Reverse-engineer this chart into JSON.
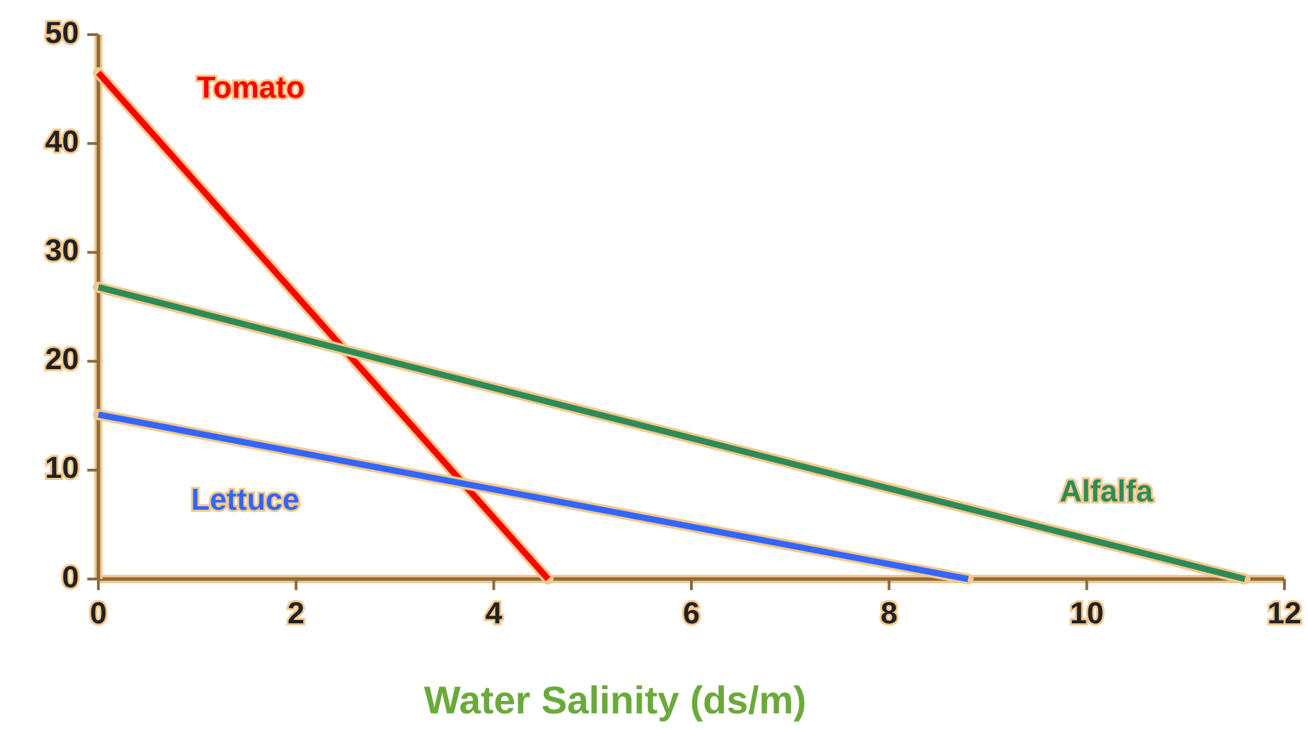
{
  "chart_data": {
    "type": "line",
    "xlabel": "Water Salinity (ds/m)",
    "xlim": [
      0,
      12
    ],
    "xticks": [
      0,
      2,
      4,
      6,
      8,
      10,
      12
    ],
    "ylim": [
      0,
      50
    ],
    "yticks": [
      0,
      10,
      20,
      30,
      40,
      50
    ],
    "grid": false,
    "legend": false,
    "marker": "none",
    "line_style": "solid",
    "series": [
      {
        "name": "Tomato",
        "color": "#ff0000",
        "x": [
          0,
          4.55
        ],
        "values": [
          46.5,
          0
        ]
      },
      {
        "name": "Alfalfa",
        "color": "#2e8b57",
        "x": [
          0,
          11.6
        ],
        "values": [
          26.8,
          0
        ]
      },
      {
        "name": "Lettuce",
        "color": "#3366ff",
        "x": [
          0,
          8.8
        ],
        "values": [
          15.1,
          0
        ]
      }
    ]
  }
}
